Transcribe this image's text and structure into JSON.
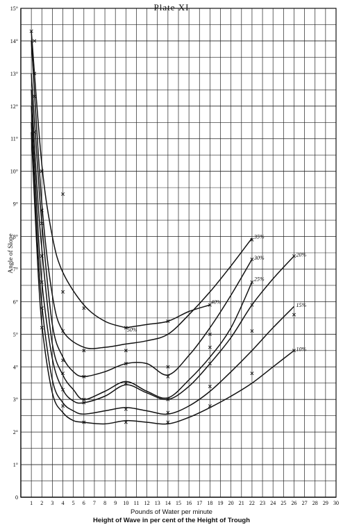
{
  "chart_data": {
    "type": "line",
    "title": "Plate XI",
    "xlabel": "Pounds of Water per minute",
    "subtitle": "Height of Wave in per cent of the Height of Trough",
    "ylabel": "Angle of Slope",
    "xlim": [
      0,
      30
    ],
    "ylim": [
      0,
      15
    ],
    "grid": true,
    "x_ticks": [
      "1",
      "2",
      "3",
      "4",
      "5",
      "6",
      "7",
      "8",
      "9",
      "10",
      "11",
      "12",
      "13",
      "14",
      "15",
      "16",
      "17",
      "18",
      "19",
      "20",
      "21",
      "22",
      "23",
      "24",
      "25",
      "26",
      "27",
      "28",
      "29",
      "30"
    ],
    "y_ticks": [
      "0",
      "1°",
      "2°",
      "3°",
      "4°",
      "5°",
      "6°",
      "7°",
      "8°",
      "9°",
      "10°",
      "11°",
      "12°",
      "13°",
      "14°",
      "15°"
    ],
    "series": [
      {
        "name": "50%",
        "points": [
          [
            1,
            14.3
          ],
          [
            2,
            10.2
          ],
          [
            3,
            8.0
          ],
          [
            4,
            6.9
          ],
          [
            6,
            5.9
          ],
          [
            8,
            5.4
          ],
          [
            10,
            5.2
          ]
        ]
      },
      {
        "name": "40%",
        "points": [
          [
            10,
            5.2
          ],
          [
            12,
            5.3
          ],
          [
            14,
            5.4
          ],
          [
            16,
            5.7
          ],
          [
            18,
            5.9
          ]
        ]
      },
      {
        "name": "35%",
        "points": [
          [
            1,
            14.0
          ],
          [
            2,
            9.0
          ],
          [
            3,
            6.2
          ],
          [
            4,
            5.1
          ],
          [
            6,
            4.6
          ],
          [
            8,
            4.6
          ],
          [
            10,
            4.7
          ],
          [
            12,
            4.8
          ],
          [
            14,
            5.0
          ],
          [
            16,
            5.6
          ],
          [
            18,
            6.3
          ],
          [
            20,
            7.1
          ],
          [
            22,
            7.95
          ]
        ]
      },
      {
        "name": "30%",
        "points": [
          [
            1,
            13.0
          ],
          [
            1.5,
            10.6
          ],
          [
            2,
            8.4
          ],
          [
            3,
            5.3
          ],
          [
            4,
            4.3
          ],
          [
            5,
            3.85
          ],
          [
            6,
            3.7
          ],
          [
            8,
            3.85
          ],
          [
            10,
            4.1
          ],
          [
            12,
            4.1
          ],
          [
            14,
            3.75
          ],
          [
            16,
            4.35
          ],
          [
            18,
            5.2
          ],
          [
            20,
            6.2
          ],
          [
            22,
            7.3
          ]
        ]
      },
      {
        "name": "25%",
        "points": [
          [
            1,
            12.5
          ],
          [
            1.5,
            9.7
          ],
          [
            2,
            7.6
          ],
          [
            3,
            4.7
          ],
          [
            4,
            3.75
          ],
          [
            5,
            3.3
          ],
          [
            6,
            3.0
          ],
          [
            8,
            3.25
          ],
          [
            10,
            3.55
          ],
          [
            12,
            3.25
          ],
          [
            14,
            3.05
          ],
          [
            16,
            3.6
          ],
          [
            18,
            4.3
          ],
          [
            20,
            5.2
          ],
          [
            22,
            6.6
          ]
        ]
      },
      {
        "name": "20%",
        "points": [
          [
            1,
            12.0
          ],
          [
            1.5,
            9.0
          ],
          [
            2,
            6.6
          ],
          [
            3,
            4.25
          ],
          [
            4,
            3.3
          ],
          [
            5,
            2.95
          ],
          [
            6,
            2.9
          ],
          [
            8,
            3.1
          ],
          [
            10,
            3.45
          ],
          [
            12,
            3.2
          ],
          [
            14,
            3.0
          ],
          [
            16,
            3.4
          ],
          [
            18,
            4.1
          ],
          [
            20,
            4.9
          ],
          [
            22,
            5.9
          ],
          [
            24,
            6.7
          ],
          [
            26,
            7.4
          ]
        ]
      },
      {
        "name": "15%",
        "points": [
          [
            1,
            11.5
          ],
          [
            1.5,
            8.3
          ],
          [
            2,
            5.9
          ],
          [
            3,
            3.6
          ],
          [
            4,
            2.9
          ],
          [
            5,
            2.65
          ],
          [
            6,
            2.55
          ],
          [
            8,
            2.65
          ],
          [
            10,
            2.75
          ],
          [
            12,
            2.65
          ],
          [
            14,
            2.55
          ],
          [
            16,
            2.8
          ],
          [
            18,
            3.25
          ],
          [
            20,
            3.85
          ],
          [
            22,
            4.5
          ],
          [
            24,
            5.2
          ],
          [
            26,
            5.85
          ]
        ]
      },
      {
        "name": "10%",
        "points": [
          [
            1,
            11.2
          ],
          [
            1.5,
            7.8
          ],
          [
            2,
            5.3
          ],
          [
            3,
            3.2
          ],
          [
            4,
            2.6
          ],
          [
            5,
            2.35
          ],
          [
            6,
            2.3
          ],
          [
            8,
            2.25
          ],
          [
            10,
            2.35
          ],
          [
            12,
            2.3
          ],
          [
            14,
            2.25
          ],
          [
            16,
            2.45
          ],
          [
            18,
            2.75
          ],
          [
            20,
            3.1
          ],
          [
            22,
            3.5
          ],
          [
            24,
            4.0
          ],
          [
            26,
            4.5
          ]
        ]
      }
    ],
    "markers": [
      [
        1,
        14.3
      ],
      [
        2,
        10.0
      ],
      [
        4,
        9.3
      ],
      [
        6,
        5.8
      ],
      [
        10,
        5.2
      ],
      [
        14,
        5.4
      ],
      [
        18,
        5.9
      ],
      [
        22,
        7.9
      ],
      [
        1.3,
        14.0
      ],
      [
        2,
        8.8
      ],
      [
        4,
        5.1
      ],
      [
        6,
        4.5
      ],
      [
        10,
        4.5
      ],
      [
        14,
        4.0
      ],
      [
        18,
        5.0
      ],
      [
        22,
        7.3
      ],
      [
        1.3,
        13.0
      ],
      [
        2,
        8.4
      ],
      [
        4,
        4.2
      ],
      [
        6,
        3.7
      ],
      [
        10,
        4.1
      ],
      [
        14,
        3.7
      ],
      [
        18,
        4.6
      ],
      [
        22,
        6.6
      ],
      [
        1.3,
        12.3
      ],
      [
        2,
        7.4
      ],
      [
        4,
        3.8
      ],
      [
        6,
        3.0
      ],
      [
        10,
        3.5
      ],
      [
        14,
        3.0
      ],
      [
        18,
        4.1
      ],
      [
        22,
        5.9
      ],
      [
        26,
        7.4
      ],
      [
        1.3,
        11.2
      ],
      [
        2,
        6.6
      ],
      [
        4,
        3.3
      ],
      [
        6,
        2.9
      ],
      [
        10,
        2.7
      ],
      [
        14,
        2.6
      ],
      [
        18,
        3.4
      ],
      [
        22,
        5.1
      ],
      [
        26,
        5.6
      ],
      [
        2,
        5.8
      ],
      [
        4,
        2.8
      ],
      [
        6,
        2.3
      ],
      [
        10,
        2.3
      ],
      [
        14,
        2.3
      ],
      [
        18,
        2.8
      ],
      [
        22,
        3.8
      ],
      [
        26,
        4.5
      ],
      [
        2,
        5.2
      ],
      [
        4,
        6.3
      ]
    ],
    "labels": [
      {
        "text": "50%",
        "x": 10.1,
        "y": 5.15
      },
      {
        "text": "40%",
        "x": 18.1,
        "y": 6.0
      },
      {
        "text": "35%",
        "x": 22.2,
        "y": 8.0
      },
      {
        "text": "30%",
        "x": 22.2,
        "y": 7.35
      },
      {
        "text": "25%",
        "x": 22.2,
        "y": 6.7
      },
      {
        "text": "20%",
        "x": 26.2,
        "y": 7.45
      },
      {
        "text": "15%",
        "x": 26.2,
        "y": 5.9
      },
      {
        "text": "10%",
        "x": 26.2,
        "y": 4.55
      }
    ]
  }
}
